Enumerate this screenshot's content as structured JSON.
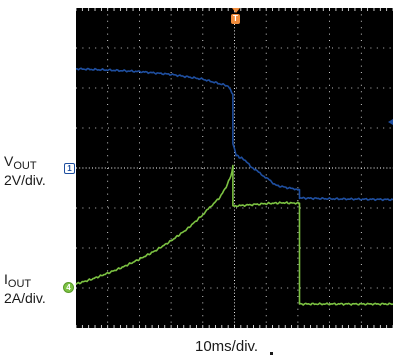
{
  "chart_data": {
    "type": "line",
    "x_label": "10ms/div.",
    "x_divisions": 10,
    "y_divisions": 8,
    "grid": true,
    "background": "#000000",
    "grid_color": "#ffffff",
    "trigger_marker": "T",
    "series": [
      {
        "name": "VOUT",
        "scale": "2V/div.",
        "channel": "1",
        "color": "#1f4fa0",
        "reference_level_div": 4,
        "x_div": [
          0,
          1.0,
          2.0,
          3.0,
          4.0,
          4.8,
          4.95,
          4.95,
          5.05,
          5.15,
          5.3,
          5.5,
          5.8,
          6.1,
          6.3,
          6.7,
          6.9,
          7.0,
          7.05,
          7.05,
          8.0,
          9.0,
          10.0
        ],
        "y_div": [
          6.48,
          6.45,
          6.41,
          6.34,
          6.22,
          6.05,
          5.84,
          4.63,
          4.33,
          4.27,
          4.22,
          4.05,
          3.87,
          3.7,
          3.57,
          3.5,
          3.48,
          3.47,
          3.46,
          3.25,
          3.23,
          3.22,
          3.21
        ]
      },
      {
        "name": "IOUT",
        "scale": "2A/div.",
        "channel": "4",
        "color": "#7cc242",
        "reference_level_div": 0.6,
        "x_div": [
          0,
          0.5,
          1.0,
          1.5,
          2.0,
          2.5,
          3.0,
          3.5,
          4.0,
          4.3,
          4.5,
          4.7,
          4.85,
          4.92,
          4.95,
          4.95,
          5.2,
          6.0,
          6.5,
          7.0,
          7.05,
          7.05,
          8.0,
          9.0,
          10.0
        ],
        "y_div": [
          1.1,
          1.22,
          1.37,
          1.53,
          1.72,
          1.93,
          2.18,
          2.47,
          2.83,
          3.08,
          3.23,
          3.47,
          3.73,
          3.9,
          4.06,
          3.05,
          3.06,
          3.11,
          3.13,
          3.12,
          3.12,
          0.6,
          0.6,
          0.6,
          0.6
        ]
      }
    ]
  },
  "labels": {
    "vout_name": "V",
    "vout_sub": "OUT",
    "vout_scale": "2V/div.",
    "vout_channel": "1",
    "iout_name": "I",
    "iout_sub": "OUT",
    "iout_scale": "2A/div.",
    "iout_channel": "4",
    "trigger": "T",
    "time_scale": "10ms/div."
  }
}
